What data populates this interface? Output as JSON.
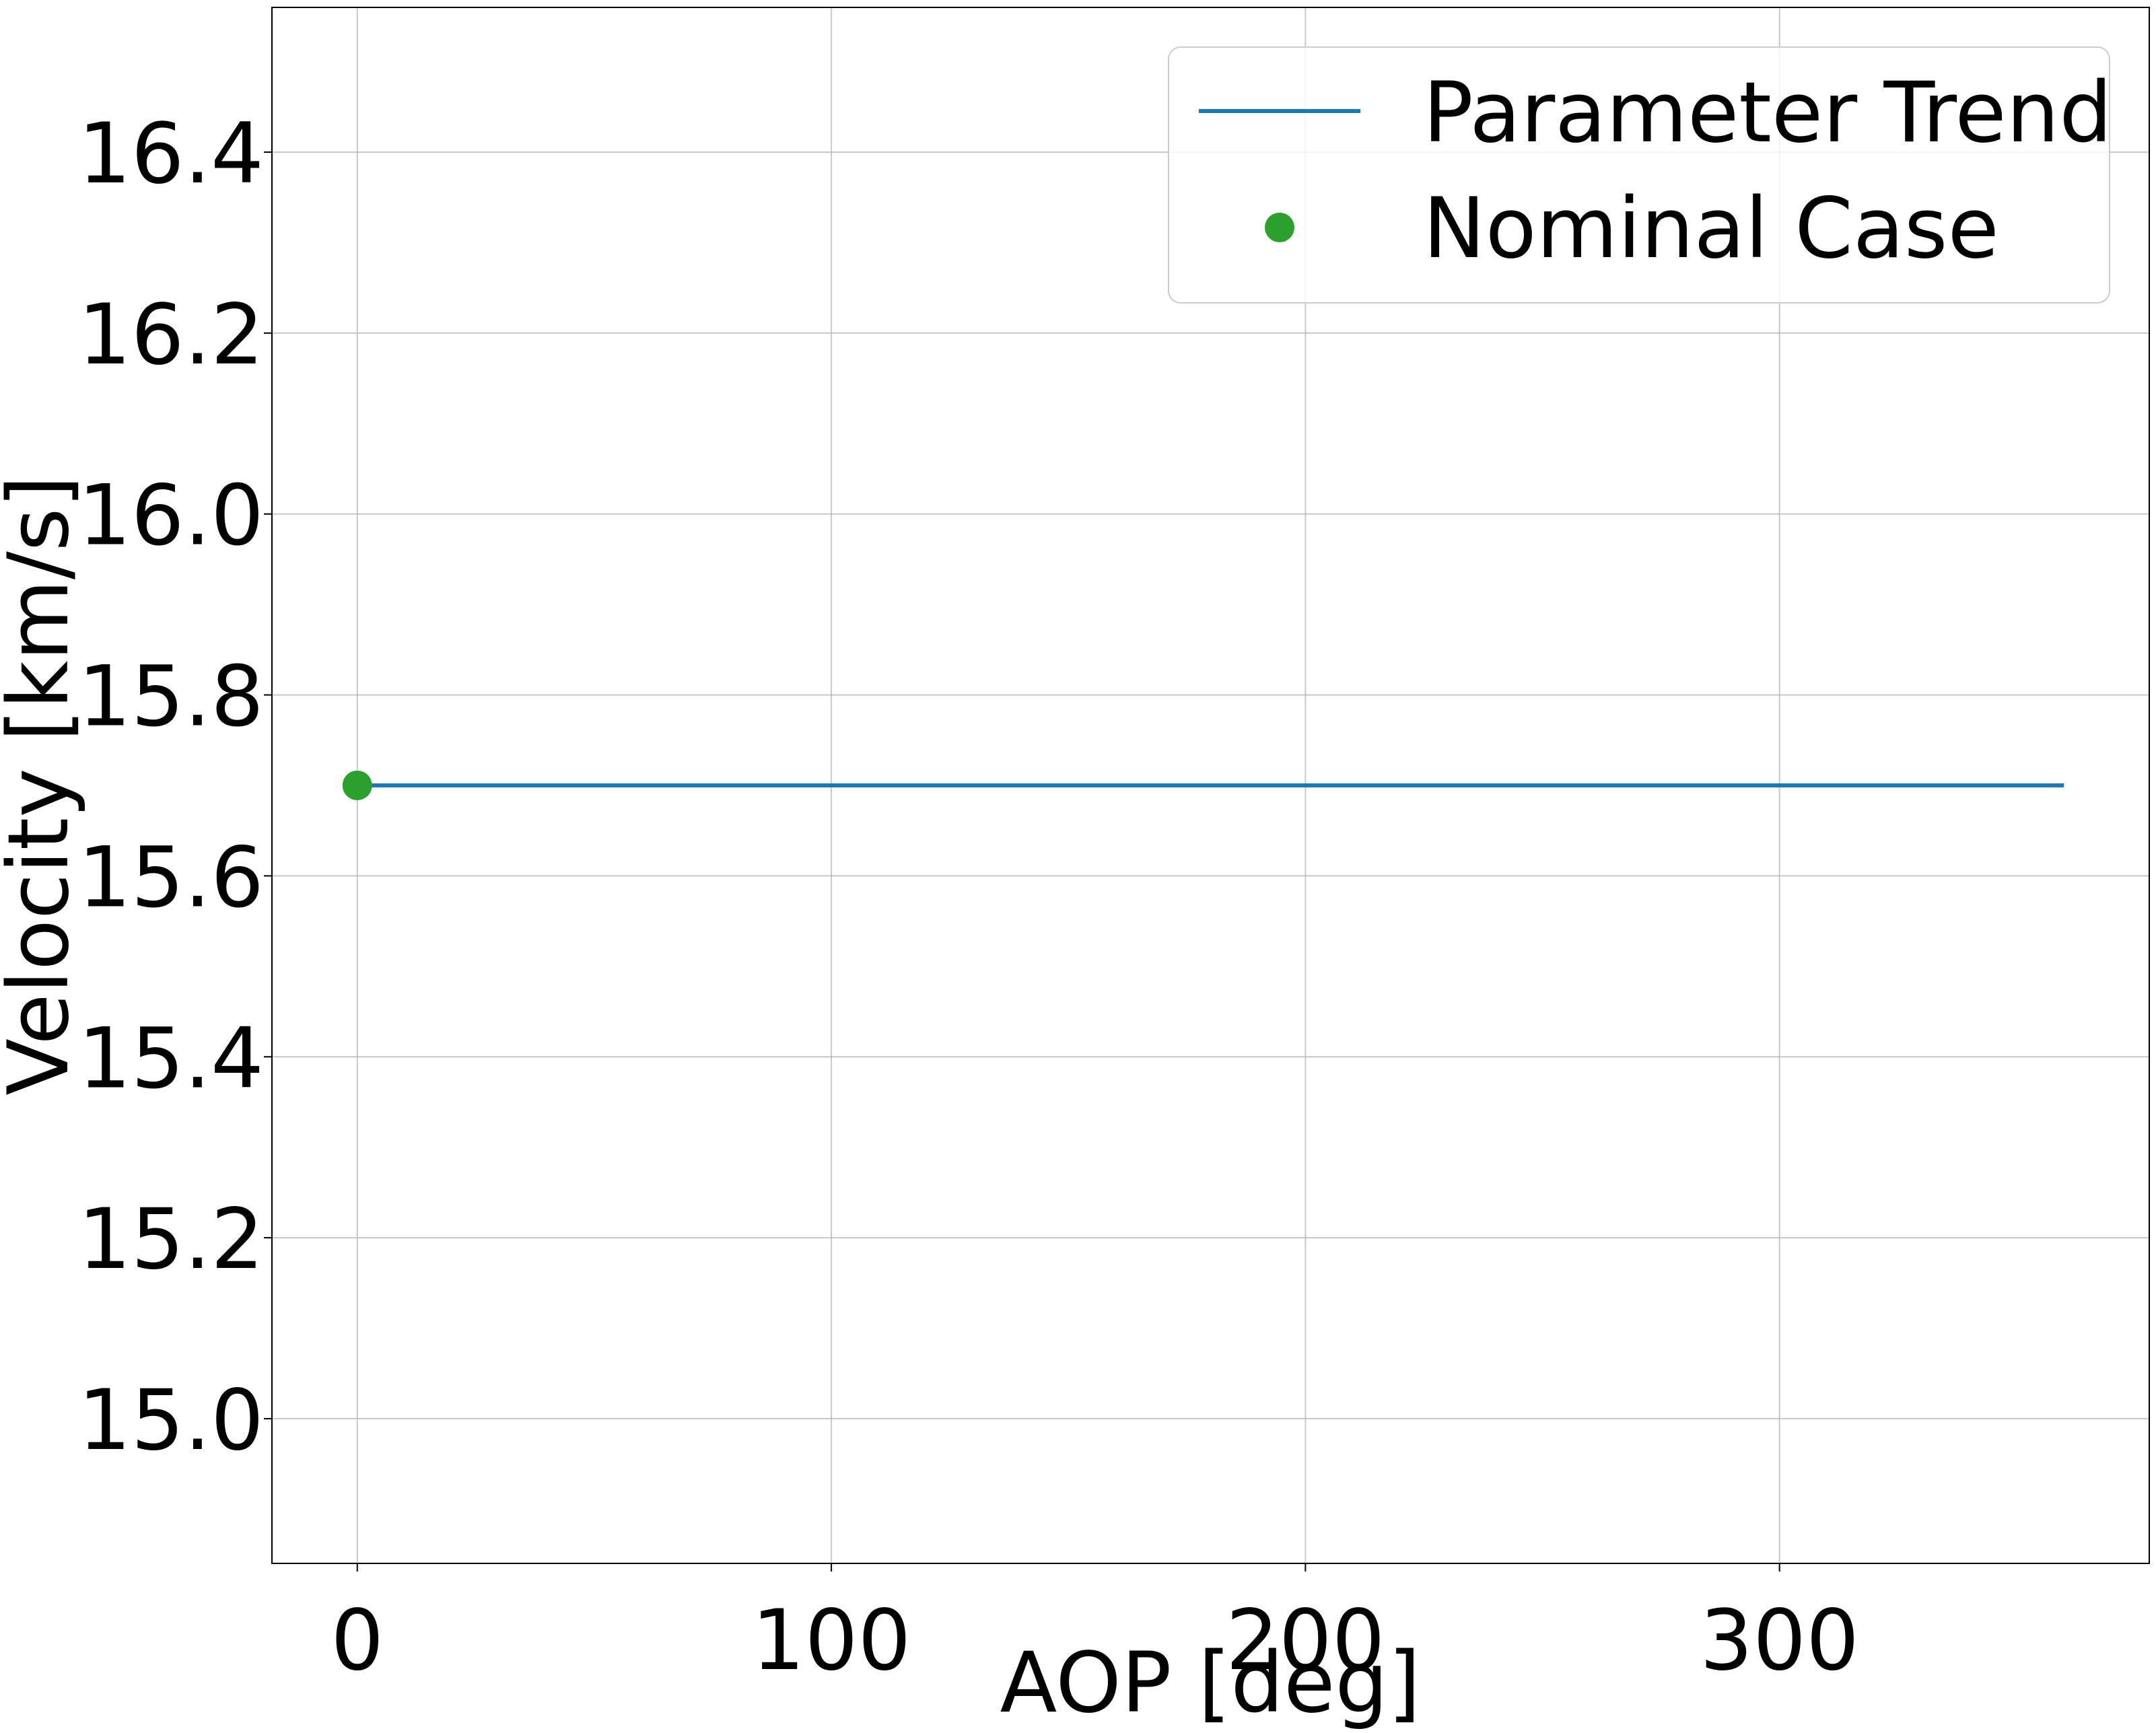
{
  "chart_data": {
    "type": "line",
    "title": "",
    "xlabel": "AOP [deg]",
    "ylabel": "Velocity [km/s]",
    "xlim": [
      -18,
      378
    ],
    "ylim": [
      14.84,
      16.56
    ],
    "x_ticks": [
      0,
      100,
      200,
      300
    ],
    "x_tick_labels": [
      "0",
      "100",
      "200",
      "300"
    ],
    "y_ticks": [
      15.0,
      15.2,
      15.4,
      15.6,
      15.8,
      16.0,
      16.2,
      16.4
    ],
    "y_tick_labels": [
      "15.0",
      "15.2",
      "15.4",
      "15.6",
      "15.8",
      "16.0",
      "16.2",
      "16.4"
    ],
    "grid": true,
    "legend_position": "top-right",
    "series": [
      {
        "name": "Parameter Trend",
        "kind": "line",
        "color": "#1f77b4",
        "x": [
          0,
          360
        ],
        "y": [
          15.7,
          15.7
        ]
      },
      {
        "name": "Nominal Case",
        "kind": "scatter",
        "color": "#2ca02c",
        "x": [
          0
        ],
        "y": [
          15.7
        ]
      }
    ]
  }
}
